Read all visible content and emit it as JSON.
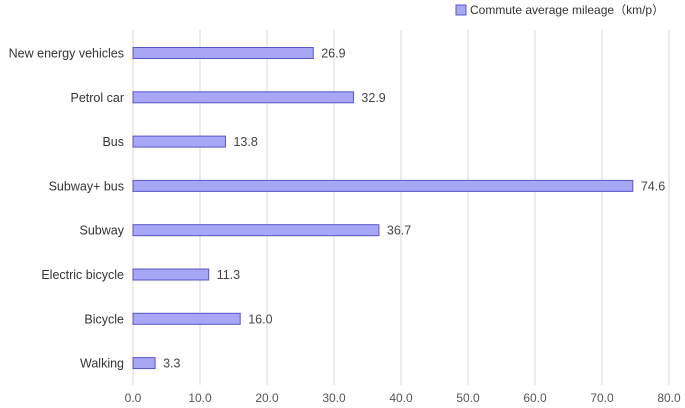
{
  "chart_data": {
    "type": "bar",
    "orientation": "horizontal",
    "categories": [
      "New energy vehicles",
      "Petrol car",
      "Bus",
      "Subway+ bus",
      "Subway",
      "Electric bicycle",
      "Bicycle",
      "Walking"
    ],
    "series": [
      {
        "name": "Commute average mileage（km/p）",
        "values": [
          26.9,
          32.9,
          13.8,
          74.6,
          36.7,
          11.3,
          16.0,
          3.3
        ],
        "labels": [
          "26.9",
          "32.9",
          "13.8",
          "74.6",
          "36.7",
          "11.3",
          "16.0",
          "3.3"
        ]
      }
    ],
    "xlim": [
      0,
      80
    ],
    "x_ticks": [
      "0.0",
      "10.0",
      "20.0",
      "30.0",
      "40.0",
      "50.0",
      "60.0",
      "70.0",
      "80.0"
    ],
    "grid": "vertical",
    "legend_position": "top-right",
    "colors": {
      "bar_fill": "#a7a7f5",
      "bar_stroke": "#5656c9",
      "grid": "#d9d9d9"
    }
  }
}
